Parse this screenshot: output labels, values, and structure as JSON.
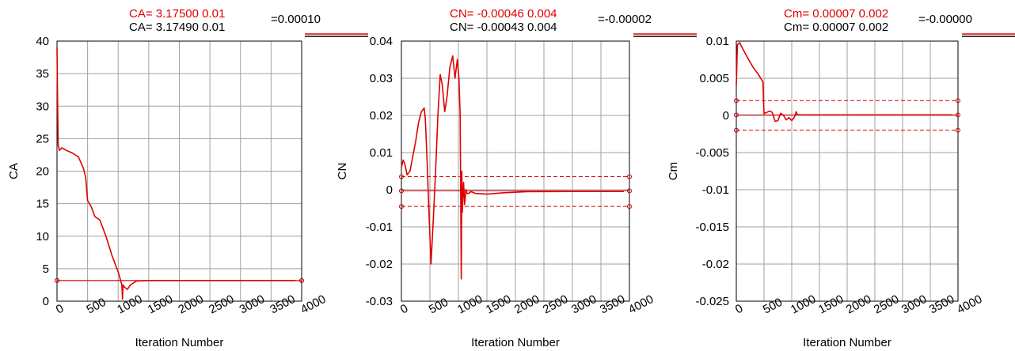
{
  "chart_data": [
    {
      "type": "line",
      "ylabel": "CA",
      "xlabel": "Iteration Number",
      "xlim": [
        0,
        4000
      ],
      "ylim": [
        0,
        40
      ],
      "xticks": [
        "0",
        "500",
        "1000",
        "1500",
        "2000",
        "2500",
        "3000",
        "3500",
        "4000"
      ],
      "yticks": [
        "0",
        "5",
        "10",
        "15",
        "20",
        "25",
        "30",
        "35",
        "40"
      ],
      "header": {
        "line1": "CA= 3.17500   0.01",
        "line2": "CA= 3.17490   0.01",
        "delta": "=0.00010"
      },
      "series": [
        {
          "x": [
            0,
            10,
            20,
            40,
            80,
            150,
            250,
            350,
            430,
            470,
            500,
            560,
            620,
            700,
            800,
            900,
            1000,
            1060,
            1070,
            1080,
            1100,
            1150,
            1200,
            1300,
            1500,
            2000,
            3000,
            3900
          ],
          "y": [
            39,
            30,
            24,
            23.2,
            23.6,
            23.2,
            22.8,
            22.2,
            20.5,
            19,
            15.5,
            14.5,
            13,
            12.5,
            10,
            7,
            4.5,
            2.5,
            0.3,
            2.5,
            2.2,
            1.8,
            2.5,
            3.1,
            3.17,
            3.17,
            3.17,
            3.17
          ]
        }
      ],
      "reference_lines": [
        3.18,
        3.17
      ]
    },
    {
      "type": "line",
      "ylabel": "CN",
      "xlabel": "Iteration Number",
      "xlim": [
        0,
        4000
      ],
      "ylim": [
        -0.03,
        0.04
      ],
      "xticks": [
        "0",
        "500",
        "1000",
        "1500",
        "2000",
        "2500",
        "3000",
        "3500",
        "4000"
      ],
      "yticks": [
        "-0.03",
        "-0.02",
        "-0.01",
        "0",
        "0.01",
        "0.02",
        "0.03",
        "0.04"
      ],
      "header": {
        "line1": "CN= -0.00046   0.004",
        "line2": "CN= -0.00043   0.004",
        "delta": "=-0.00002"
      },
      "series": [
        {
          "x": [
            0,
            30,
            60,
            100,
            150,
            200,
            250,
            300,
            350,
            400,
            420,
            450,
            480,
            520,
            560,
            600,
            640,
            680,
            720,
            760,
            800,
            850,
            900,
            940,
            980,
            1010,
            1030,
            1050,
            1060,
            1070,
            1090,
            1110,
            1130,
            1150,
            1180,
            1220,
            1300,
            1500,
            1800,
            2200,
            3000,
            3900
          ],
          "y": [
            0.006,
            0.008,
            0.007,
            0.004,
            0.005,
            0.009,
            0.013,
            0.018,
            0.021,
            0.022,
            0.019,
            0.008,
            -0.005,
            -0.02,
            -0.008,
            0.005,
            0.02,
            0.031,
            0.028,
            0.021,
            0.025,
            0.033,
            0.036,
            0.03,
            0.035,
            0.03,
            0.02,
            -0.024,
            0.005,
            -0.006,
            0.002,
            -0.004,
            0.0,
            -0.001,
            -0.001,
            -0.0005,
            -0.001,
            -0.0012,
            -0.0008,
            -0.0005,
            -0.00046,
            -0.00046
          ]
        }
      ],
      "reference_lines": [
        0.0035,
        -0.0045,
        -0.0003
      ]
    },
    {
      "type": "line",
      "ylabel": "Cm",
      "xlabel": "Iteration Number",
      "xlim": [
        0,
        4000
      ],
      "ylim": [
        -0.025,
        0.01
      ],
      "xticks": [
        "0",
        "500",
        "1000",
        "1500",
        "2000",
        "2500",
        "3000",
        "3500",
        "4000"
      ],
      "yticks": [
        "-0.025",
        "-0.02",
        "-0.015",
        "-0.01",
        "-0.005",
        "0",
        "0.005",
        "0.01"
      ],
      "header": {
        "line1": "Cm= 0.00007   0.002",
        "line2": "Cm= 0.00007   0.002",
        "delta": "=-0.00000"
      },
      "series": [
        {
          "x": [
            0,
            20,
            60,
            100,
            200,
            300,
            400,
            480,
            500,
            510,
            550,
            600,
            650,
            700,
            750,
            800,
            850,
            900,
            950,
            1000,
            1050,
            1080,
            1100,
            1200,
            1500,
            2000,
            3000,
            3900
          ],
          "y": [
            0.004,
            0.0095,
            0.0098,
            0.0092,
            0.0078,
            0.0065,
            0.0055,
            0.0045,
            0.0002,
            0.0003,
            0.0004,
            0.0006,
            0.0004,
            -0.0008,
            -0.0007,
            0.0003,
            0.0,
            -0.0006,
            -0.0003,
            -0.0007,
            -0.0002,
            0.0005,
            0.0001,
            7e-05,
            7e-05,
            7e-05,
            7e-05,
            7e-05
          ]
        }
      ],
      "reference_lines": [
        0.002,
        -0.002,
        7e-05
      ]
    }
  ]
}
